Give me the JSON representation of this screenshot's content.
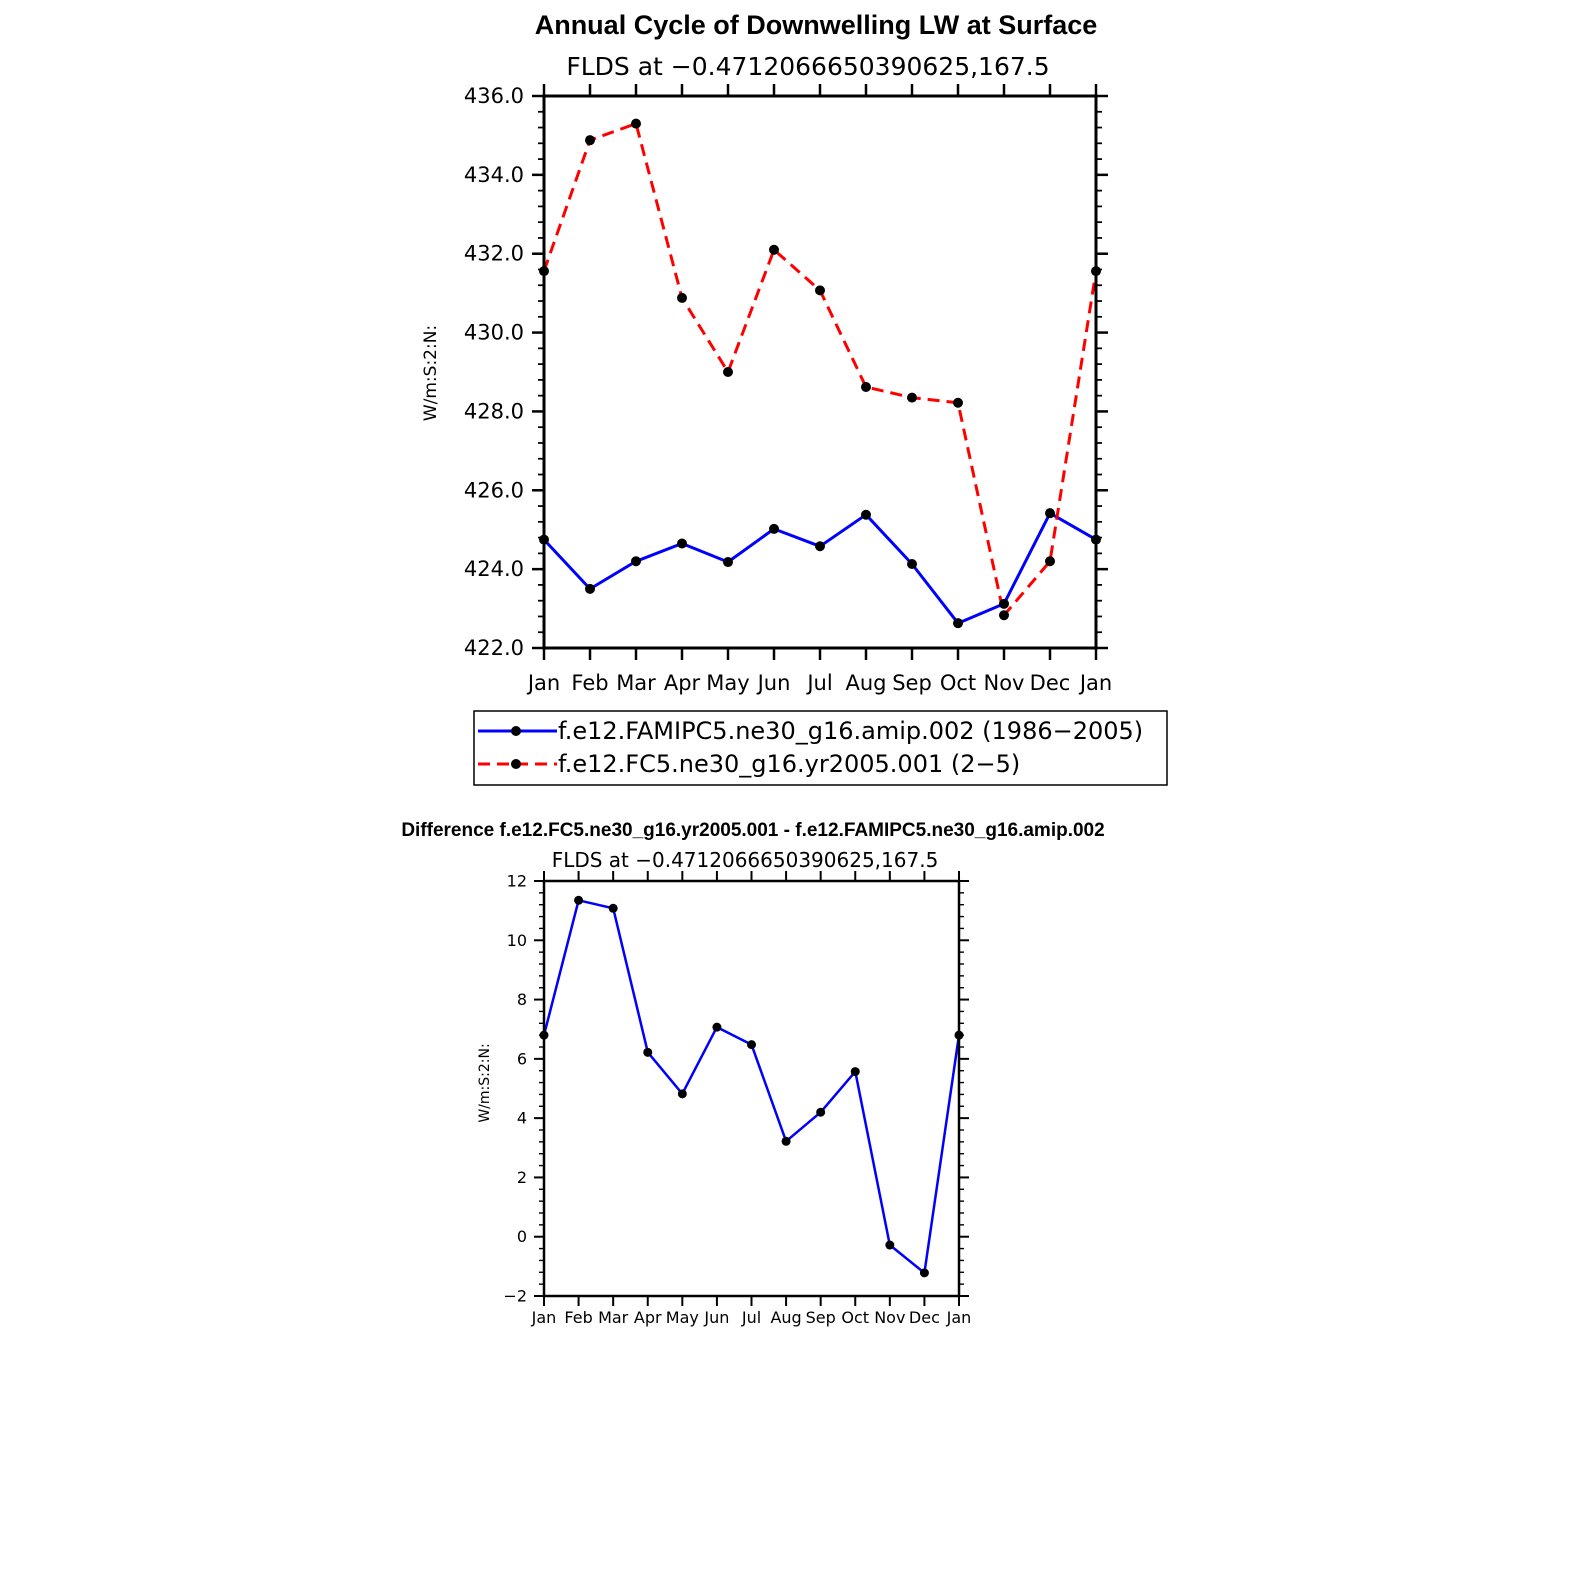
{
  "chart_data": [
    {
      "type": "line",
      "title": "Annual Cycle of Downwelling LW at Surface",
      "subtitle": "FLDS at −0.4712066650390625,167.5",
      "xlabel": "",
      "ylabel": "W/m:S:2:N:",
      "categories": [
        "Jan",
        "Feb",
        "Mar",
        "Apr",
        "May",
        "Jun",
        "Jul",
        "Aug",
        "Sep",
        "Oct",
        "Nov",
        "Dec",
        "Jan"
      ],
      "ylim": [
        422,
        436
      ],
      "yticks": [
        "422.0",
        "424.0",
        "426.0",
        "428.0",
        "430.0",
        "432.0",
        "434.0",
        "436.0"
      ],
      "legend_position": "bottom",
      "series": [
        {
          "name": "f.e12.FAMIPC5.ne30_g16.amip.002 (1986−2005)",
          "color": "#0000ff",
          "dash": "solid",
          "values": [
            424.75,
            423.5,
            424.2,
            424.65,
            424.18,
            425.02,
            424.58,
            425.38,
            424.13,
            422.63,
            423.12,
            425.42,
            424.75
          ]
        },
        {
          "name": "f.e12.FC5.ne30_g16.yr2005.001 (2−5)",
          "color": "#ff0000",
          "dash": "dashed",
          "values": [
            431.56,
            434.88,
            435.3,
            430.88,
            429.0,
            432.1,
            431.07,
            428.62,
            428.35,
            428.22,
            422.83,
            424.2,
            431.56
          ]
        }
      ]
    },
    {
      "type": "line",
      "title": "Difference f.e12.FC5.ne30_g16.yr2005.001 - f.e12.FAMIPC5.ne30_g16.amip.002",
      "subtitle": "FLDS at −0.4712066650390625,167.5",
      "xlabel": "",
      "ylabel": "W/m:S:2:N:",
      "categories": [
        "Jan",
        "Feb",
        "Mar",
        "Apr",
        "May",
        "Jun",
        "Jul",
        "Aug",
        "Sep",
        "Oct",
        "Nov",
        "Dec",
        "Jan"
      ],
      "ylim": [
        -2,
        12
      ],
      "yticks": [
        "−2",
        "0",
        "2",
        "4",
        "6",
        "8",
        "10",
        "12"
      ],
      "series": [
        {
          "color": "#0000ff",
          "dash": "solid",
          "values": [
            6.8,
            11.35,
            11.08,
            6.22,
            4.82,
            7.07,
            6.48,
            3.22,
            4.2,
            5.57,
            -0.28,
            -1.22,
            6.8
          ]
        }
      ]
    }
  ]
}
